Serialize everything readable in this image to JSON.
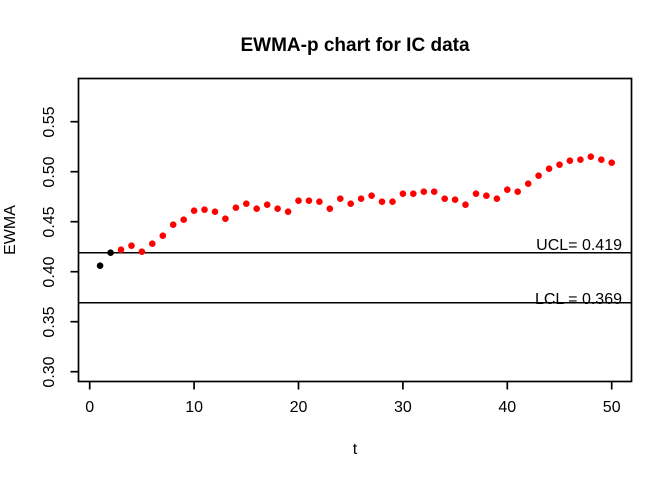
{
  "title": "EWMA-p chart for IC data",
  "chart_data": {
    "type": "scatter",
    "title": "EWMA-p chart for IC data",
    "xlabel": "t",
    "ylabel": "EWMA",
    "x_tick_labels": [
      "0",
      "10",
      "20",
      "30",
      "40",
      "50"
    ],
    "x_tick_values": [
      0,
      10,
      20,
      30,
      40,
      50
    ],
    "y_tick_labels": [
      "0.30",
      "0.35",
      "0.40",
      "0.45",
      "0.50",
      "0.55"
    ],
    "y_tick_values": [
      0.3,
      0.35,
      0.4,
      0.45,
      0.5,
      0.55
    ],
    "xlim": [
      -1.1,
      51.9
    ],
    "ylim": [
      0.29,
      0.593
    ],
    "grid": false,
    "legend_position": "none",
    "marker": "filled-circle",
    "series": [
      {
        "name": "EWMA statistic",
        "x": [
          1,
          2,
          3,
          4,
          5,
          6,
          7,
          8,
          9,
          10,
          11,
          12,
          13,
          14,
          15,
          16,
          17,
          18,
          19,
          20,
          21,
          22,
          23,
          24,
          25,
          26,
          27,
          28,
          29,
          30,
          31,
          32,
          33,
          34,
          35,
          36,
          37,
          38,
          39,
          40,
          41,
          42,
          43,
          44,
          45,
          46,
          47,
          48,
          49,
          50
        ],
        "values": [
          0.406,
          0.419,
          0.422,
          0.426,
          0.42,
          0.428,
          0.436,
          0.447,
          0.452,
          0.461,
          0.462,
          0.46,
          0.453,
          0.464,
          0.468,
          0.463,
          0.467,
          0.463,
          0.46,
          0.471,
          0.471,
          0.47,
          0.463,
          0.473,
          0.468,
          0.473,
          0.476,
          0.47,
          0.47,
          0.478,
          0.478,
          0.48,
          0.48,
          0.473,
          0.472,
          0.467,
          0.478,
          0.476,
          0.473,
          0.482,
          0.48,
          0.488,
          0.496,
          0.503,
          0.507,
          0.511,
          0.512,
          0.515,
          0.512,
          0.509
        ]
      }
    ],
    "start_black_point_count": 2,
    "control_limits": {
      "ucl_value": 0.419,
      "ucl_label": "UCL= 0.419",
      "lcl_value": 0.369,
      "lcl_label": "LCL = 0.369"
    },
    "colors": {
      "point_default": "#FF0000",
      "point_start": "#000000",
      "axis": "#000000",
      "background": "#FFFFFF"
    }
  }
}
